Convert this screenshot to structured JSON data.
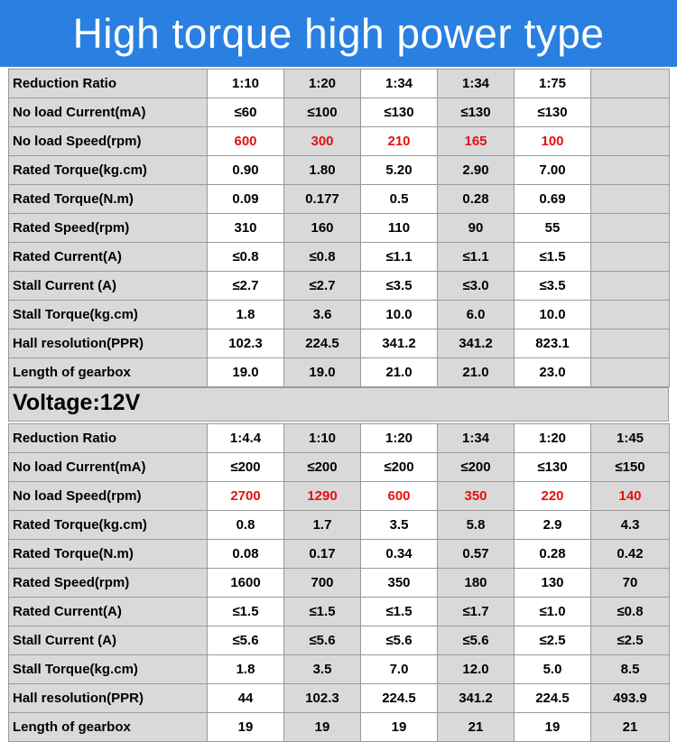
{
  "title": "High torque high power type",
  "voltage_label": "Voltage:12V",
  "colors": {
    "banner": "#2a80e0",
    "highlight_text": "#e81010",
    "shade": "#d9d9d9"
  },
  "table1": {
    "rows": [
      {
        "label": "Reduction Ratio",
        "values": [
          "1:10",
          "1:20",
          "1:34",
          "1:34",
          "1:75",
          ""
        ]
      },
      {
        "label": "No load Current(mA)",
        "values": [
          "≤60",
          "≤100",
          "≤130",
          "≤130",
          "≤130",
          ""
        ]
      },
      {
        "label": "No load Speed(rpm)",
        "values": [
          "600",
          "300",
          "210",
          "165",
          "100",
          ""
        ],
        "highlight": true
      },
      {
        "label": "Rated Torque(kg.cm)",
        "values": [
          "0.90",
          "1.80",
          "5.20",
          "2.90",
          "7.00",
          ""
        ]
      },
      {
        "label": "Rated Torque(N.m)",
        "values": [
          "0.09",
          "0.177",
          "0.5",
          "0.28",
          "0.69",
          ""
        ]
      },
      {
        "label": "Rated Speed(rpm)",
        "values": [
          "310",
          "160",
          "110",
          "90",
          "55",
          ""
        ]
      },
      {
        "label": "Rated Current(A)",
        "values": [
          "≤0.8",
          "≤0.8",
          "≤1.1",
          "≤1.1",
          "≤1.5",
          ""
        ]
      },
      {
        "label": "Stall Current (A)",
        "values": [
          "≤2.7",
          "≤2.7",
          "≤3.5",
          "≤3.0",
          "≤3.5",
          ""
        ]
      },
      {
        "label": "Stall Torque(kg.cm)",
        "values": [
          "1.8",
          "3.6",
          "10.0",
          "6.0",
          "10.0",
          ""
        ]
      },
      {
        "label": "Hall resolution(PPR)",
        "values": [
          "102.3",
          "224.5",
          "341.2",
          "341.2",
          "823.1",
          ""
        ]
      },
      {
        "label": "Length of gearbox",
        "values": [
          "19.0",
          "19.0",
          "21.0",
          "21.0",
          "23.0",
          ""
        ]
      }
    ]
  },
  "table2": {
    "rows": [
      {
        "label": "Reduction Ratio",
        "values": [
          "1:4.4",
          "1:10",
          "1:20",
          "1:34",
          "1:20",
          "1:45"
        ]
      },
      {
        "label": "No load Current(mA)",
        "values": [
          "≤200",
          "≤200",
          "≤200",
          "≤200",
          "≤130",
          "≤150"
        ]
      },
      {
        "label": "No load Speed(rpm)",
        "values": [
          "2700",
          "1290",
          "600",
          "350",
          "220",
          "140"
        ],
        "highlight": true
      },
      {
        "label": "Rated Torque(kg.cm)",
        "values": [
          "0.8",
          "1.7",
          "3.5",
          "5.8",
          "2.9",
          "4.3"
        ]
      },
      {
        "label": "Rated Torque(N.m)",
        "values": [
          "0.08",
          "0.17",
          "0.34",
          "0.57",
          "0.28",
          "0.42"
        ]
      },
      {
        "label": "Rated Speed(rpm)",
        "values": [
          "1600",
          "700",
          "350",
          "180",
          "130",
          "70"
        ]
      },
      {
        "label": "Rated Current(A)",
        "values": [
          "≤1.5",
          "≤1.5",
          "≤1.5",
          "≤1.7",
          "≤1.0",
          "≤0.8"
        ]
      },
      {
        "label": "Stall Current (A)",
        "values": [
          "≤5.6",
          "≤5.6",
          "≤5.6",
          "≤5.6",
          "≤2.5",
          "≤2.5"
        ]
      },
      {
        "label": "Stall Torque(kg.cm)",
        "values": [
          "1.8",
          "3.5",
          "7.0",
          "12.0",
          "5.0",
          "8.5"
        ]
      },
      {
        "label": "Hall resolution(PPR)",
        "values": [
          "44",
          "102.3",
          "224.5",
          "341.2",
          "224.5",
          "493.9"
        ]
      },
      {
        "label": "Length of gearbox",
        "values": [
          "19",
          "19",
          "19",
          "21",
          "19",
          "21"
        ]
      }
    ]
  }
}
